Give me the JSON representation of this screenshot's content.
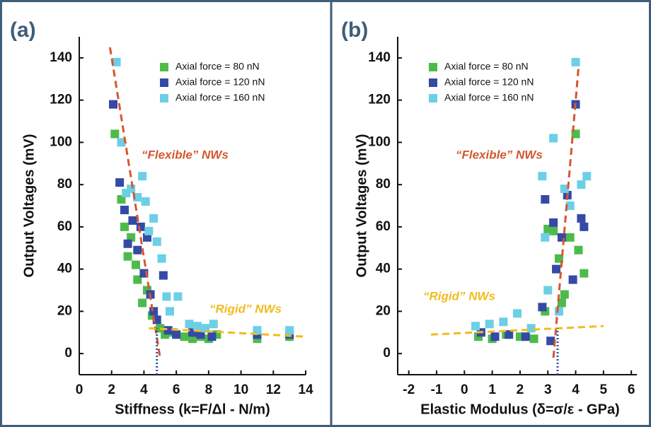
{
  "chart_data": [
    {
      "type": "scatter",
      "panel_label": "(a)",
      "x_label": "Stiffness (k=F/Δl - N/m)",
      "y_label": "Output Voltages (mV)",
      "xlim": [
        0,
        14
      ],
      "ylim": [
        -10,
        150
      ],
      "xticks": [
        0,
        2,
        4,
        6,
        8,
        10,
        12,
        14
      ],
      "yticks": [
        0,
        20,
        40,
        60,
        80,
        100,
        120,
        140
      ],
      "legend": "upper right",
      "series": [
        {
          "name": "Axial force = 80 nN",
          "color": "#4dbb4a",
          "x": [
            2.2,
            2.6,
            2.8,
            3.0,
            3.2,
            3.5,
            3.6,
            3.9,
            4.2,
            4.5,
            5.0,
            5.3,
            5.8,
            6.5,
            7.0,
            7.5,
            8.0,
            8.5,
            11.0,
            13.0
          ],
          "values": [
            104,
            73,
            60,
            46,
            55,
            42,
            35,
            24,
            30,
            18,
            12,
            9,
            10,
            8,
            7,
            8,
            7,
            9,
            7,
            8
          ]
        },
        {
          "name": "Axial force = 120 nN",
          "color": "#3549a6",
          "x": [
            2.1,
            2.5,
            2.8,
            3.0,
            3.3,
            3.6,
            3.8,
            4.0,
            4.2,
            4.4,
            4.6,
            4.8,
            5.2,
            5.5,
            6.0,
            7.0,
            7.5,
            8.2,
            11.0,
            13.0
          ],
          "values": [
            118,
            81,
            68,
            52,
            63,
            49,
            60,
            38,
            55,
            28,
            20,
            16,
            37,
            11,
            9,
            10,
            9,
            8,
            9,
            9
          ]
        },
        {
          "name": "Axial force = 160 nN",
          "color": "#6ccfe6",
          "x": [
            2.3,
            2.6,
            2.9,
            3.2,
            3.6,
            3.9,
            4.1,
            4.3,
            4.6,
            4.8,
            5.1,
            5.4,
            5.6,
            6.1,
            6.8,
            7.3,
            7.8,
            8.3,
            11.0,
            13.0
          ],
          "values": [
            138,
            100,
            76,
            78,
            74,
            84,
            72,
            58,
            64,
            53,
            45,
            27,
            20,
            27,
            14,
            13,
            12,
            14,
            11,
            11
          ]
        }
      ],
      "annotations": [
        {
          "text": "“Flexible” NWs",
          "color": "#d4572f"
        },
        {
          "text": "“Rigid” NWs",
          "color": "#f2bb1d"
        }
      ],
      "trend_lines": [
        {
          "color": "#d4572f",
          "x": [
            1.9,
            5.0
          ],
          "y": [
            145,
            -2
          ]
        },
        {
          "color": "#f2bb1d",
          "x": [
            4.3,
            14
          ],
          "y": [
            12,
            8
          ]
        }
      ],
      "vlines": [
        {
          "color": "#2e4f9e",
          "x": 4.8,
          "y": [
            -10,
            12
          ]
        }
      ]
    },
    {
      "type": "scatter",
      "panel_label": "(b)",
      "x_label": "Elastic Modulus (δ=σ/ε - GPa)",
      "y_label": "Output Voltages (mV)",
      "xlim": [
        -2.4,
        6.2
      ],
      "ylim": [
        -10,
        150
      ],
      "xticks": [
        -2,
        -1,
        0,
        1,
        2,
        3,
        4,
        5,
        6
      ],
      "yticks": [
        0,
        20,
        40,
        60,
        80,
        100,
        120,
        140
      ],
      "legend": "upper left",
      "series": [
        {
          "name": "Axial force = 80 nN",
          "color": "#4dbb4a",
          "x": [
            0.5,
            1.0,
            1.5,
            2.0,
            2.5,
            2.9,
            3.0,
            3.2,
            3.4,
            3.5,
            3.6,
            3.8,
            4.0,
            4.1,
            4.3
          ],
          "values": [
            8,
            7,
            9,
            8,
            7,
            20,
            59,
            58,
            45,
            24,
            28,
            55,
            104,
            49,
            38
          ]
        },
        {
          "name": "Axial force = 120 nN",
          "color": "#3549a6",
          "x": [
            0.6,
            1.1,
            1.6,
            2.2,
            2.8,
            2.9,
            3.1,
            3.2,
            3.3,
            3.5,
            3.7,
            3.9,
            4.0,
            4.2,
            4.3
          ],
          "values": [
            10,
            8,
            9,
            8,
            22,
            73,
            6,
            62,
            40,
            55,
            75,
            35,
            118,
            64,
            60
          ]
        },
        {
          "name": "Axial force = 160 nN",
          "color": "#6ccfe6",
          "x": [
            0.4,
            0.9,
            1.4,
            1.9,
            2.4,
            2.8,
            2.9,
            3.0,
            3.2,
            3.4,
            3.6,
            3.8,
            4.0,
            4.2,
            4.4
          ],
          "values": [
            13,
            14,
            15,
            19,
            12,
            84,
            55,
            30,
            102,
            20,
            78,
            70,
            138,
            80,
            84
          ]
        }
      ],
      "annotations": [
        {
          "text": "“Flexible” NWs",
          "color": "#d4572f"
        },
        {
          "text": "“Rigid” NWs",
          "color": "#f2bb1d"
        }
      ],
      "trend_lines": [
        {
          "color": "#d4572f",
          "x": [
            3.2,
            4.1
          ],
          "y": [
            -2,
            135
          ]
        },
        {
          "color": "#f2bb1d",
          "x": [
            -1.2,
            5.0
          ],
          "y": [
            9,
            13
          ]
        }
      ],
      "vlines": [
        {
          "color": "#2e4f9e",
          "x": 3.35,
          "y": [
            -10,
            12
          ]
        }
      ]
    }
  ]
}
